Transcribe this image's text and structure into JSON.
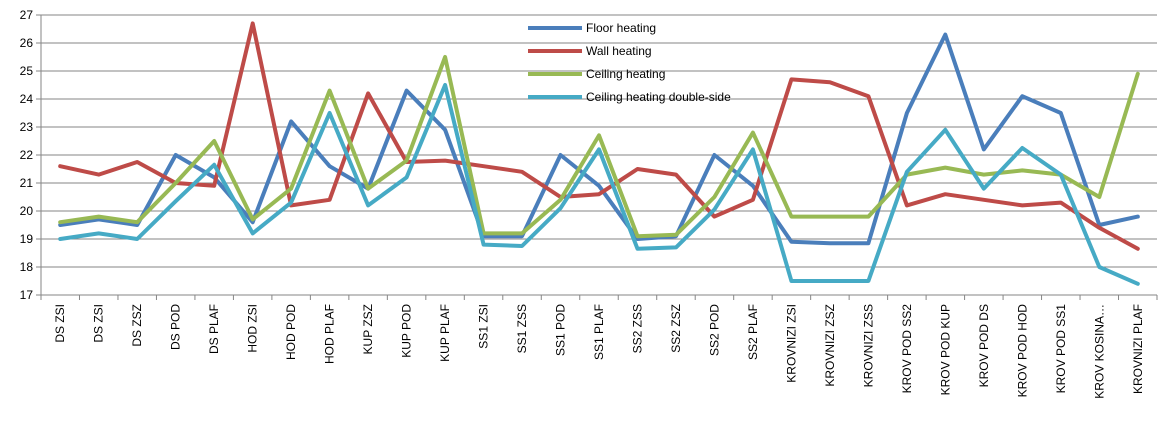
{
  "chart_data": {
    "type": "line",
    "categories": [
      "DS ZSI",
      "DS ZSI",
      "DS ZSZ",
      "DS POD",
      "DS PLAF",
      "HOD ZSI",
      "HOD POD",
      "HOD PLAF",
      "KUP ZSZ",
      "KUP POD",
      "KUP PLAF",
      "SS1 ZSI",
      "SS1 ZSS",
      "SS1 POD",
      "SS1 PLAF",
      "SS2 ZSS",
      "SS2 ZSZ",
      "SS2 POD",
      "SS2 PLAF",
      "KROVNIZI ZSI",
      "KROVNIZI ZSZ",
      "KROVNIZI ZSS",
      "KROV POD SS2",
      "KROV POD KUP",
      "KROV POD DS",
      "KROV POD HOD",
      "KROV POD SS1",
      "KROV KOSINA…",
      "KROVNIZI PLAF"
    ],
    "ylim": [
      17,
      27
    ],
    "yticks": [
      17,
      18,
      19,
      20,
      21,
      22,
      23,
      24,
      25,
      26,
      27
    ],
    "grid": true,
    "legend_position": "top-center",
    "series": [
      {
        "name": "Floor heating",
        "color": "#4a7ebb",
        "values": [
          19.5,
          19.7,
          19.5,
          22.0,
          21.2,
          19.6,
          23.2,
          21.6,
          20.8,
          24.3,
          22.9,
          19.1,
          19.1,
          22.0,
          20.9,
          19.0,
          19.1,
          22.0,
          20.9,
          18.9,
          18.85,
          18.85,
          23.5,
          26.3,
          22.2,
          24.1,
          23.5,
          19.5,
          19.8
        ]
      },
      {
        "name": "Wall heating",
        "color": "#be4b48",
        "values": [
          21.6,
          21.3,
          21.75,
          21.0,
          20.9,
          26.7,
          20.2,
          20.4,
          24.2,
          21.75,
          21.8,
          21.6,
          21.4,
          20.5,
          20.6,
          21.5,
          21.3,
          19.8,
          20.4,
          24.7,
          24.6,
          24.1,
          20.2,
          20.6,
          20.4,
          20.2,
          20.3,
          19.4,
          18.65
        ]
      },
      {
        "name": "Ceiling heating",
        "color": "#98b954",
        "values": [
          19.6,
          19.8,
          19.6,
          21.0,
          22.5,
          19.7,
          20.8,
          24.3,
          20.8,
          21.8,
          25.5,
          19.2,
          19.2,
          20.4,
          22.7,
          19.1,
          19.15,
          20.5,
          22.8,
          19.8,
          19.8,
          19.8,
          21.3,
          21.55,
          21.3,
          21.45,
          21.3,
          20.5,
          24.9
        ]
      },
      {
        "name": "Ceiling heating double-side",
        "color": "#46aac5",
        "values": [
          19.0,
          19.2,
          19.0,
          20.35,
          21.65,
          19.2,
          20.3,
          23.5,
          20.2,
          21.2,
          24.5,
          18.8,
          18.75,
          20.1,
          22.2,
          18.65,
          18.7,
          20.05,
          22.2,
          17.5,
          17.5,
          17.5,
          21.4,
          22.9,
          20.8,
          22.25,
          21.3,
          18.0,
          17.4
        ]
      }
    ]
  }
}
